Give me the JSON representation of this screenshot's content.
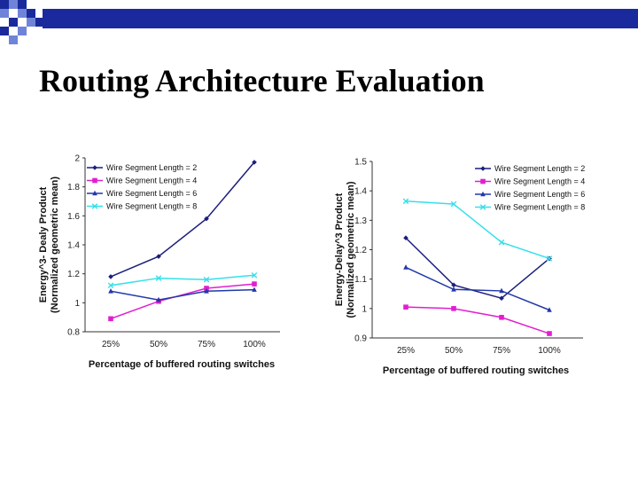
{
  "slide": {
    "title": "Routing Architecture Evaluation",
    "colors": {
      "accent": "#1a2a9c",
      "square_light": "#6f84d8"
    }
  },
  "chart_data": [
    {
      "type": "line",
      "categories": [
        "25%",
        "50%",
        "75%",
        "100%"
      ],
      "xlabel": "Percentage of buffered routing switches",
      "ylabel": [
        "Energy^3- Dealy Product",
        "(Normalized geometric mean)"
      ],
      "ylim": [
        0.8,
        2.0
      ],
      "yticks": [
        "0.8",
        "1",
        "1.2",
        "1.4",
        "1.6",
        "1.8",
        "2"
      ],
      "legend_position": "top-left",
      "grid": false,
      "series": [
        {
          "name": "Wire Segment Length = 2",
          "values": [
            1.18,
            1.32,
            1.58,
            1.97
          ],
          "color": "#1c1f7a",
          "marker": "diamond"
        },
        {
          "name": "Wire Segment Length = 4",
          "values": [
            0.89,
            1.01,
            1.1,
            1.13
          ],
          "color": "#e01fd0",
          "marker": "square"
        },
        {
          "name": "Wire Segment Length = 6",
          "values": [
            1.08,
            1.02,
            1.08,
            1.09
          ],
          "color": "#2238a8",
          "marker": "triangle"
        },
        {
          "name": "Wire Segment Length = 8",
          "values": [
            1.12,
            1.17,
            1.16,
            1.19
          ],
          "color": "#35e0ea",
          "marker": "x"
        }
      ]
    },
    {
      "type": "line",
      "categories": [
        "25%",
        "50%",
        "75%",
        "100%"
      ],
      "xlabel": "Percentage of buffered routing switches",
      "ylabel": [
        "Energy-Delay^3 Product",
        "(Normalized geometric mean)"
      ],
      "ylim": [
        0.9,
        1.5
      ],
      "yticks": [
        "0.9",
        "1",
        "1.1",
        "1.2",
        "1.3",
        "1.4",
        "1.5"
      ],
      "legend_position": "top-right",
      "grid": false,
      "series": [
        {
          "name": "Wire Segment Length = 2",
          "values": [
            1.24,
            1.08,
            1.035,
            1.17
          ],
          "color": "#1c1f7a",
          "marker": "diamond"
        },
        {
          "name": "Wire Segment Length = 4",
          "values": [
            1.005,
            1.0,
            0.97,
            0.915
          ],
          "color": "#e01fd0",
          "marker": "square"
        },
        {
          "name": "Wire Segment Length = 6",
          "values": [
            1.14,
            1.065,
            1.06,
            0.995
          ],
          "color": "#2238a8",
          "marker": "triangle"
        },
        {
          "name": "Wire Segment Length = 8",
          "values": [
            1.365,
            1.355,
            1.225,
            1.17
          ],
          "color": "#35e0ea",
          "marker": "x"
        }
      ]
    }
  ]
}
